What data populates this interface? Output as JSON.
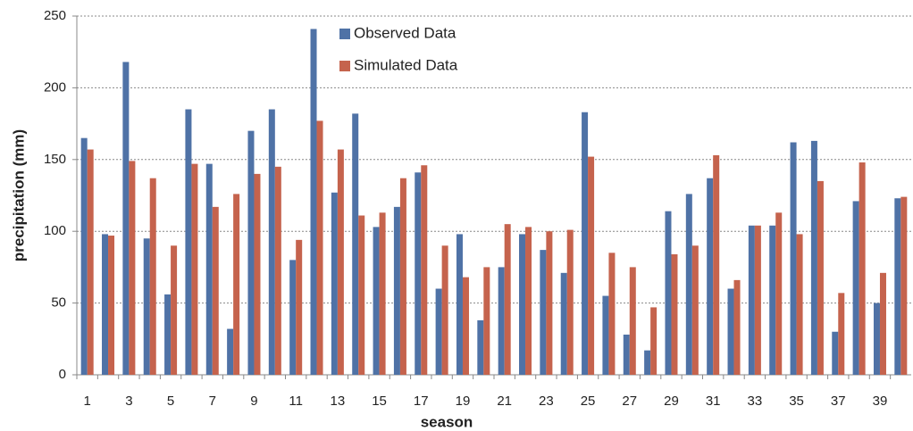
{
  "chart_data": {
    "type": "bar",
    "x_label": "season",
    "y_label": "precipitation (mm)",
    "categories": [
      "1",
      null,
      "3",
      null,
      "5",
      null,
      "7",
      null,
      "9",
      null,
      "11",
      null,
      "13",
      null,
      "15",
      null,
      "17",
      null,
      "19",
      null,
      "21",
      null,
      "23",
      null,
      "25",
      null,
      "27",
      null,
      "29",
      null,
      "31",
      null,
      "33",
      null,
      "35",
      null,
      "37",
      null,
      "39",
      null
    ],
    "series": [
      {
        "name": "Observed Data",
        "color": "#4f72a6",
        "values": [
          165,
          98,
          218,
          95,
          56,
          185,
          147,
          32,
          170,
          185,
          80,
          241,
          127,
          182,
          103,
          117,
          141,
          60,
          98,
          38,
          75,
          98,
          87,
          71,
          183,
          55,
          28,
          17,
          114,
          126,
          137,
          60,
          104,
          104,
          162,
          163,
          30,
          121,
          50,
          123
        ]
      },
      {
        "name": "Simulated Data",
        "color": "#c5634d",
        "values": [
          157,
          97,
          149,
          137,
          90,
          147,
          117,
          126,
          140,
          145,
          94,
          177,
          157,
          111,
          113,
          137,
          146,
          90,
          68,
          75,
          105,
          103,
          100,
          101,
          152,
          85,
          75,
          47,
          84,
          90,
          153,
          66,
          104,
          113,
          98,
          135,
          57,
          148,
          71,
          124
        ]
      }
    ],
    "ylim": [
      0,
      250
    ],
    "yticks": [
      0,
      50,
      100,
      150,
      200,
      250
    ],
    "grid": true
  }
}
